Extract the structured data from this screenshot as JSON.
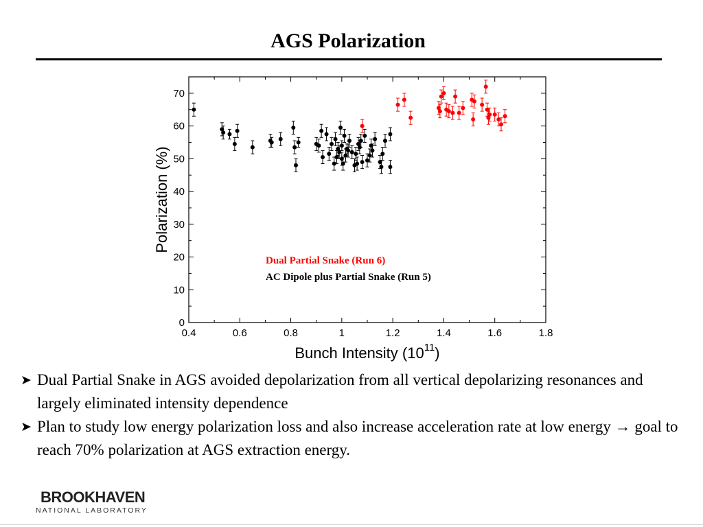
{
  "slide": {
    "title": "AGS Polarization",
    "bullets": [
      "Dual Partial Snake in AGS avoided depolarization from all vertical depolarizing resonances and largely eliminated intensity dependence",
      "Plan to study low energy polarization loss and also increase acceleration rate at low energy → goal to reach 70% polarization  at AGS extraction energy."
    ],
    "bullet_icon": "arrow-bullet-icon"
  },
  "logo": {
    "main": "BROOKHAVEN",
    "sub": "NATIONAL LABORATORY",
    "icon": "brookhaven-logo"
  },
  "colors": {
    "run6": "#ff0000",
    "run5": "#000000"
  },
  "chart_data": {
    "type": "scatter",
    "title": "",
    "xlabel": "Bunch Intensity (10",
    "xlabel_exp": "11",
    "xlabel_close": ")",
    "ylabel": "Polarization (%)",
    "xlim": [
      0.4,
      1.8
    ],
    "ylim": [
      0,
      75
    ],
    "xticks": [
      0.4,
      0.6,
      0.8,
      1,
      1.2,
      1.4,
      1.6,
      1.8
    ],
    "xtick_labels": [
      "0.4",
      "0.6",
      "0.8",
      "1",
      "1.2",
      "1.4",
      "1.6",
      "1.8"
    ],
    "yticks": [
      0,
      10,
      20,
      30,
      40,
      50,
      60,
      70
    ],
    "ytick_labels": [
      "0",
      "10",
      "20",
      "30",
      "40",
      "50",
      "60",
      "70"
    ],
    "grid": false,
    "legend_position": "inside-bottom-right",
    "series": [
      {
        "name": "Dual Partial Snake (Run 6)",
        "color": "#ff0000",
        "points": [
          [
            1.08,
            60,
            2.0
          ],
          [
            1.22,
            66.5,
            2.0
          ],
          [
            1.245,
            68,
            2.0
          ],
          [
            1.27,
            62.5,
            2.0
          ],
          [
            1.38,
            65.5,
            2.0
          ],
          [
            1.385,
            64.5,
            2.0
          ],
          [
            1.39,
            69,
            2.0
          ],
          [
            1.4,
            70,
            2.0
          ],
          [
            1.41,
            65,
            2.0
          ],
          [
            1.42,
            64.5,
            2.0
          ],
          [
            1.435,
            64,
            2.0
          ],
          [
            1.445,
            69,
            2.0
          ],
          [
            1.46,
            64,
            2.0
          ],
          [
            1.475,
            65.5,
            2.0
          ],
          [
            1.51,
            68,
            2.0
          ],
          [
            1.515,
            62,
            2.0
          ],
          [
            1.52,
            67.5,
            2.0
          ],
          [
            1.55,
            66.5,
            2.0
          ],
          [
            1.565,
            72,
            2.0
          ],
          [
            1.57,
            65,
            2.0
          ],
          [
            1.575,
            62.5,
            2.0
          ],
          [
            1.58,
            63.5,
            2.0
          ],
          [
            1.6,
            63.5,
            2.0
          ],
          [
            1.615,
            62,
            2.0
          ],
          [
            1.625,
            60.5,
            2.0
          ],
          [
            1.64,
            63,
            2.0
          ]
        ]
      },
      {
        "name": "AC Dipole plus Partial Snake (Run 5)",
        "color": "#000000",
        "points": [
          [
            0.42,
            65,
            2.0
          ],
          [
            0.53,
            59,
            2.0
          ],
          [
            0.535,
            58,
            2.0
          ],
          [
            0.56,
            57.5,
            1.5
          ],
          [
            0.58,
            54.5,
            2.0
          ],
          [
            0.59,
            58.5,
            2.0
          ],
          [
            0.65,
            53.5,
            2.0
          ],
          [
            0.72,
            55.5,
            2.0
          ],
          [
            0.725,
            55,
            1.5
          ],
          [
            0.76,
            56,
            2.0
          ],
          [
            0.81,
            59.5,
            2.0
          ],
          [
            0.815,
            53.5,
            2.0
          ],
          [
            0.82,
            48,
            2.0
          ],
          [
            0.83,
            55,
            1.5
          ],
          [
            0.9,
            54.5,
            2.0
          ],
          [
            0.91,
            54,
            2.0
          ],
          [
            0.92,
            58.5,
            2.0
          ],
          [
            0.925,
            50.5,
            2.0
          ],
          [
            0.94,
            57.5,
            2.0
          ],
          [
            0.95,
            51.5,
            2.0
          ],
          [
            0.96,
            54.5,
            2.0
          ],
          [
            0.97,
            48.5,
            2.0
          ],
          [
            0.975,
            56,
            2.0
          ],
          [
            0.98,
            50.5,
            2.0
          ],
          [
            0.985,
            53,
            2.0
          ],
          [
            0.99,
            52,
            2.0
          ],
          [
            0.995,
            59.5,
            2.0
          ],
          [
            1.0,
            50,
            2.0
          ],
          [
            1.0,
            54,
            1.5
          ],
          [
            1.005,
            48.5,
            2.0
          ],
          [
            1.01,
            57,
            2.0
          ],
          [
            1.015,
            51,
            2.0
          ],
          [
            1.02,
            53,
            1.5
          ],
          [
            1.025,
            52.5,
            2.0
          ],
          [
            1.03,
            55.5,
            2.0
          ],
          [
            1.04,
            52,
            2.0
          ],
          [
            1.05,
            48,
            2.0
          ],
          [
            1.055,
            51.5,
            2.0
          ],
          [
            1.06,
            48.5,
            2.0
          ],
          [
            1.065,
            54.5,
            2.0
          ],
          [
            1.07,
            53.5,
            2.0
          ],
          [
            1.075,
            55.5,
            2.0
          ],
          [
            1.08,
            49,
            2.0
          ],
          [
            1.09,
            57,
            2.0
          ],
          [
            1.1,
            49.5,
            2.0
          ],
          [
            1.11,
            51,
            2.0
          ],
          [
            1.115,
            54,
            2.0
          ],
          [
            1.12,
            52.5,
            2.0
          ],
          [
            1.13,
            56,
            2.0
          ],
          [
            1.15,
            49,
            2.0
          ],
          [
            1.155,
            47.5,
            2.0
          ],
          [
            1.16,
            51.5,
            2.0
          ],
          [
            1.17,
            55.5,
            2.0
          ],
          [
            1.19,
            57.5,
            2.0
          ],
          [
            1.19,
            47.5,
            2.0
          ]
        ]
      }
    ]
  }
}
